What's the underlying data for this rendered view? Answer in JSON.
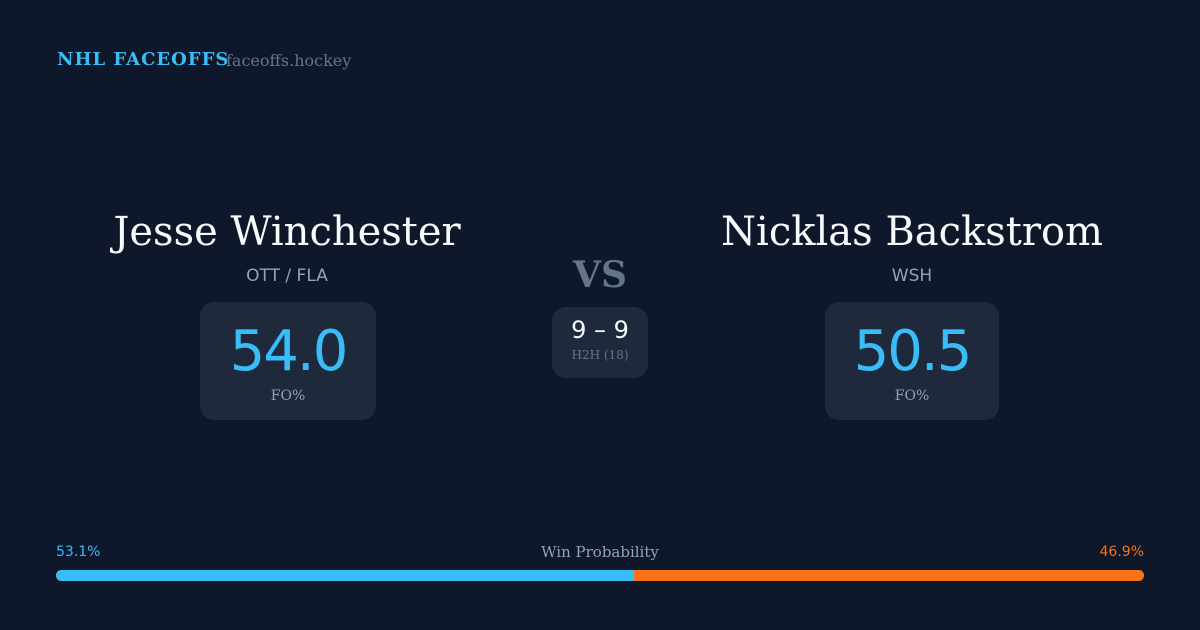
{
  "header": {
    "brand": "NHL FACEOFFS",
    "site": "faceoffs.hockey"
  },
  "left": {
    "name": "Jesse Winchester",
    "team": "OTT / FLA",
    "fo_pct": "54.0",
    "fo_label": "FO%"
  },
  "right": {
    "name": "Nicklas Backstrom",
    "team": "WSH",
    "fo_pct": "50.5",
    "fo_label": "FO%"
  },
  "center": {
    "vs": "VS",
    "score": "9 – 9",
    "h2h": "H2H (18)"
  },
  "win_probability": {
    "label": "Win Probability",
    "left_label": "53.1%",
    "right_label": "46.9%",
    "left_value": 53.1,
    "right_value": 46.9,
    "left_color": "#38bdf8",
    "right_color": "#f97316"
  }
}
